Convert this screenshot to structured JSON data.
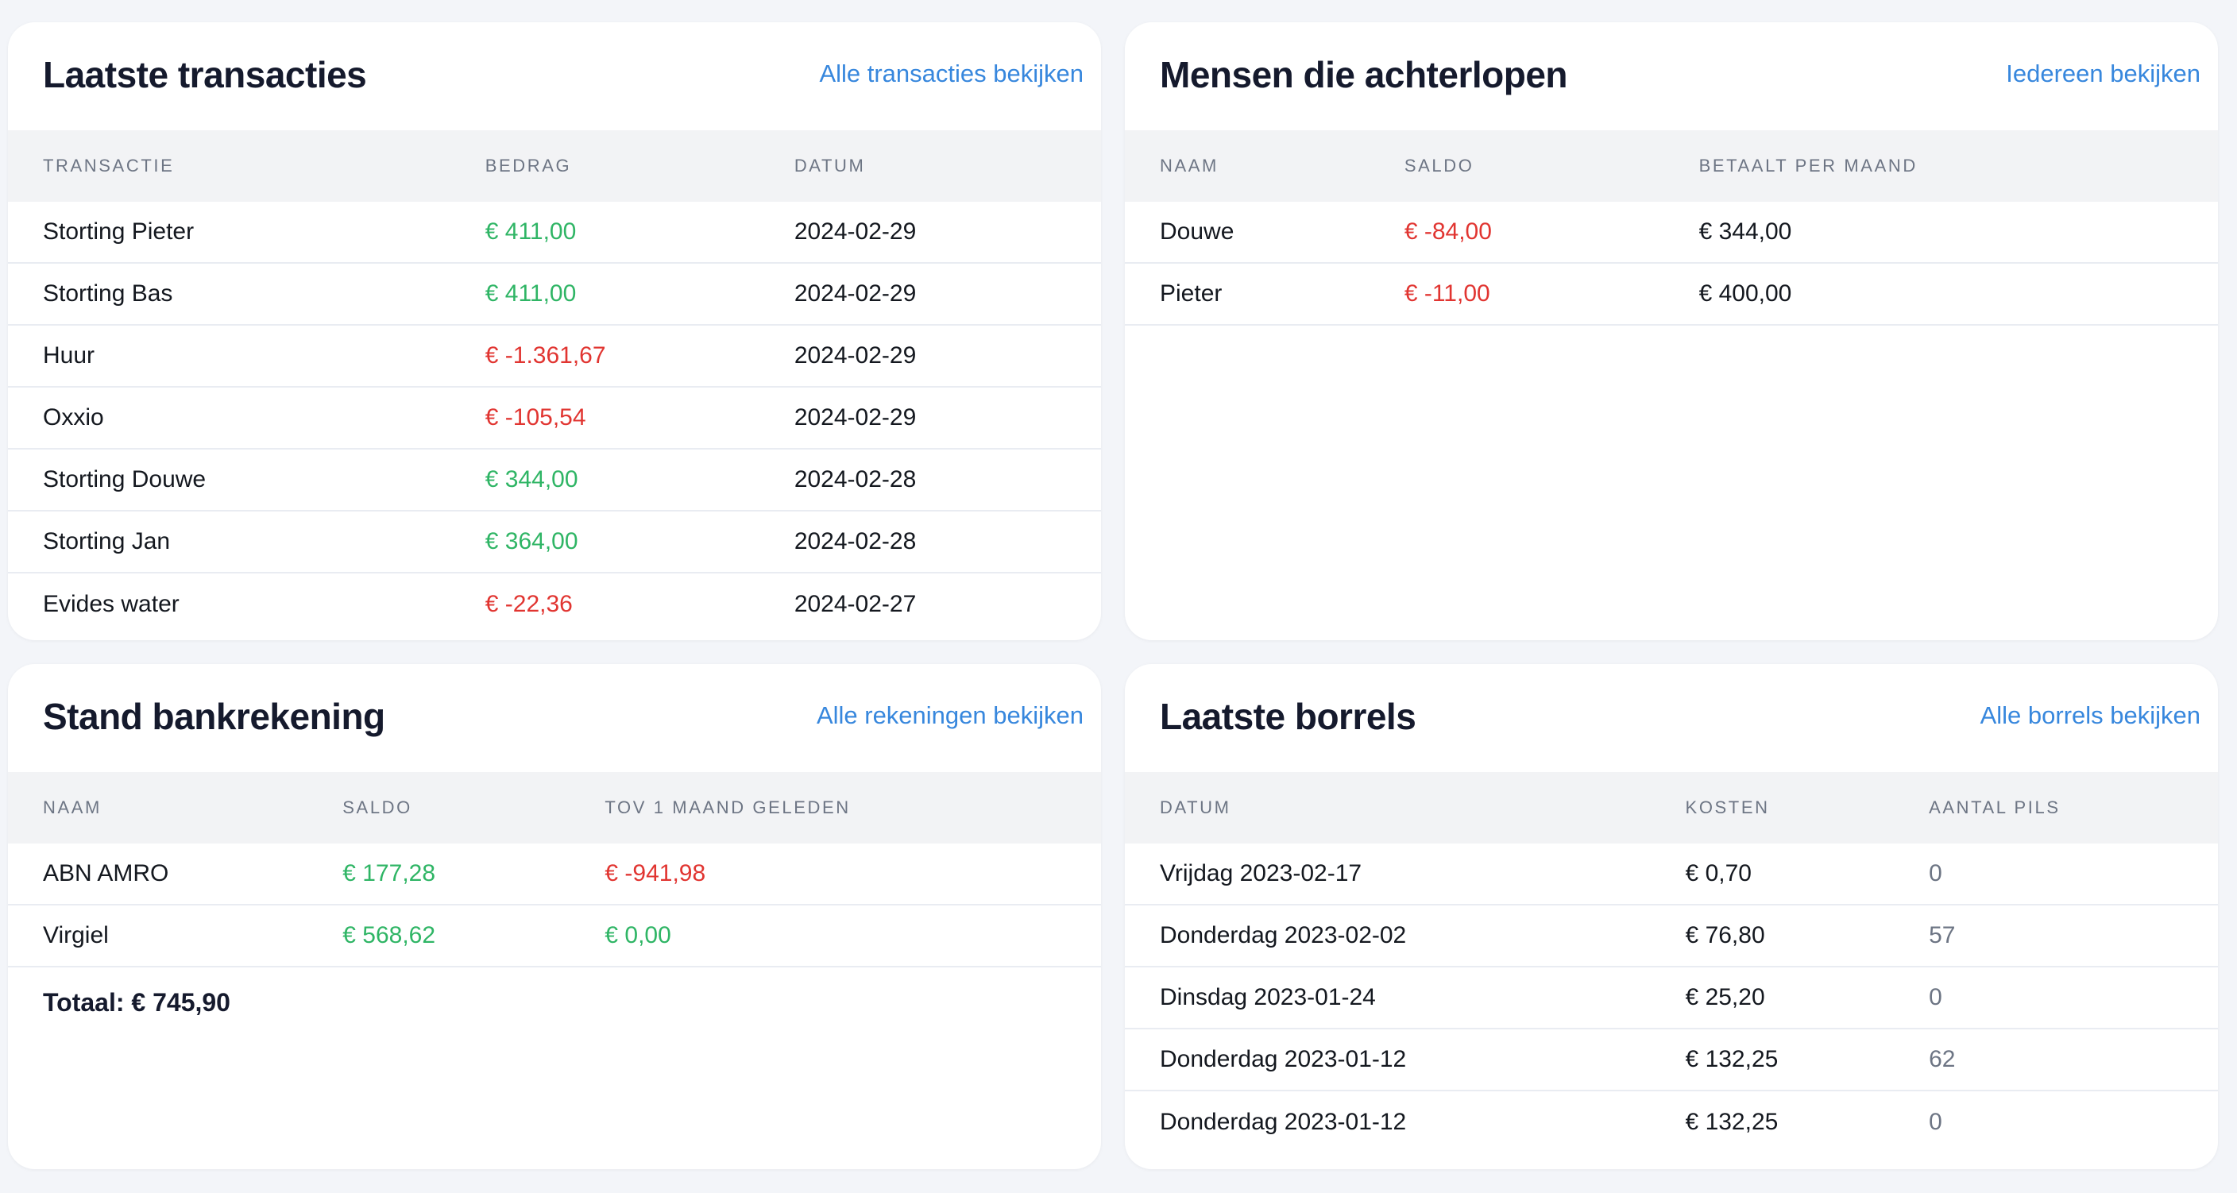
{
  "colors": {
    "page_bg": "#f3f5f9",
    "card_bg": "#ffffff",
    "band_bg": "#f2f3f5",
    "divider": "#e9ecf2",
    "title_text": "#151a2d",
    "body_text": "#14181f",
    "muted_text": "#6d7584",
    "link": "#3787dd",
    "positive": "#2fb565",
    "negative": "#e13531"
  },
  "cards": {
    "transactions": {
      "title": "Laatste transacties",
      "link_label": "Alle transacties bekijken",
      "headers": [
        "Transactie",
        "Bedrag",
        "Datum"
      ],
      "rows": [
        {
          "label": "Storting Pieter",
          "amount": "€ 411,00",
          "sign": "pos",
          "date": "2024-02-29"
        },
        {
          "label": "Storting Bas",
          "amount": "€ 411,00",
          "sign": "pos",
          "date": "2024-02-29"
        },
        {
          "label": "Huur",
          "amount": "€ -1.361,67",
          "sign": "neg",
          "date": "2024-02-29"
        },
        {
          "label": "Oxxio",
          "amount": "€ -105,54",
          "sign": "neg",
          "date": "2024-02-29"
        },
        {
          "label": "Storting Douwe",
          "amount": "€ 344,00",
          "sign": "pos",
          "date": "2024-02-28"
        },
        {
          "label": "Storting Jan",
          "amount": "€ 364,00",
          "sign": "pos",
          "date": "2024-02-28"
        },
        {
          "label": "Evides water",
          "amount": "€ -22,36",
          "sign": "neg",
          "date": "2024-02-27"
        }
      ]
    },
    "behind": {
      "title": "Mensen die achterlopen",
      "link_label": "Iedereen bekijken",
      "headers": [
        "Naam",
        "Saldo",
        "Betaalt per maand"
      ],
      "rows": [
        {
          "name": "Douwe",
          "saldo": "€ -84,00",
          "saldo_sign": "neg",
          "monthly": "€ 344,00"
        },
        {
          "name": "Pieter",
          "saldo": "€ -11,00",
          "saldo_sign": "neg",
          "monthly": "€ 400,00"
        }
      ]
    },
    "accounts": {
      "title": "Stand bankrekening",
      "link_label": "Alle rekeningen bekijken",
      "headers": [
        "Naam",
        "Saldo",
        "Tov 1 maand geleden"
      ],
      "rows": [
        {
          "name": "ABN AMRO",
          "saldo": "€ 177,28",
          "saldo_sign": "pos",
          "delta": "€ -941,98",
          "delta_sign": "neg"
        },
        {
          "name": "Virgiel",
          "saldo": "€ 568,62",
          "saldo_sign": "pos",
          "delta": "€ 0,00",
          "delta_sign": "pos"
        }
      ],
      "total_label": "Totaal: € 745,90"
    },
    "borrels": {
      "title": "Laatste borrels",
      "link_label": "Alle borrels bekijken",
      "headers": [
        "Datum",
        "Kosten",
        "Aantal pils"
      ],
      "rows": [
        {
          "date": "Vrijdag 2023-02-17",
          "cost": "€ 0,70",
          "beers": "0"
        },
        {
          "date": "Donderdag 2023-02-02",
          "cost": "€ 76,80",
          "beers": "57"
        },
        {
          "date": "Dinsdag 2023-01-24",
          "cost": "€ 25,20",
          "beers": "0"
        },
        {
          "date": "Donderdag 2023-01-12",
          "cost": "€ 132,25",
          "beers": "62"
        },
        {
          "date": "Donderdag 2023-01-12",
          "cost": "€ 132,25",
          "beers": "0"
        }
      ]
    }
  }
}
